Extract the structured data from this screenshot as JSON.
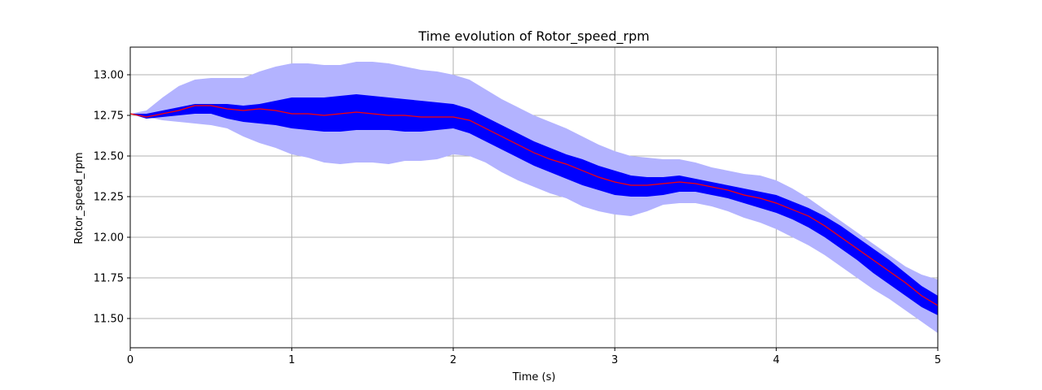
{
  "chart_data": {
    "type": "area",
    "title": "Time evolution of Rotor_speed_rpm",
    "xlabel": "Time (s)",
    "ylabel": "Rotor_speed_rpm",
    "xlim": [
      0,
      5
    ],
    "ylim": [
      11.32,
      13.17
    ],
    "xticks": [
      0,
      1,
      2,
      3,
      4,
      5
    ],
    "xtick_labels": [
      "0",
      "1",
      "2",
      "3",
      "4",
      "5"
    ],
    "yticks": [
      11.5,
      11.75,
      12.0,
      12.25,
      12.5,
      12.75,
      13.0
    ],
    "ytick_labels": [
      "11.50",
      "11.75",
      "12.00",
      "12.25",
      "12.50",
      "12.75",
      "13.00"
    ],
    "grid": true,
    "colors": {
      "outer_band": "#b3b3ff",
      "inner_band": "#0000ff",
      "mean_line": "#ff0000",
      "grid": "#b0b0b0",
      "axis": "#000000"
    },
    "x": [
      0,
      0.1,
      0.2,
      0.3,
      0.4,
      0.5,
      0.6,
      0.7,
      0.8,
      0.9,
      1.0,
      1.1,
      1.2,
      1.3,
      1.4,
      1.5,
      1.6,
      1.7,
      1.8,
      1.9,
      2.0,
      2.1,
      2.2,
      2.3,
      2.4,
      2.5,
      2.6,
      2.7,
      2.8,
      2.9,
      3.0,
      3.1,
      3.2,
      3.3,
      3.4,
      3.5,
      3.6,
      3.7,
      3.8,
      3.9,
      4.0,
      4.1,
      4.2,
      4.3,
      4.4,
      4.5,
      4.6,
      4.7,
      4.8,
      4.9,
      5.0
    ],
    "series": [
      {
        "role": "outer_upper",
        "values": [
          12.76,
          12.78,
          12.86,
          12.93,
          12.97,
          12.98,
          12.98,
          12.98,
          13.02,
          13.05,
          13.07,
          13.07,
          13.06,
          13.06,
          13.08,
          13.08,
          13.07,
          13.05,
          13.03,
          13.02,
          13.0,
          12.97,
          12.91,
          12.85,
          12.8,
          12.75,
          12.71,
          12.67,
          12.62,
          12.57,
          12.53,
          12.5,
          12.49,
          12.48,
          12.48,
          12.46,
          12.43,
          12.41,
          12.39,
          12.38,
          12.35,
          12.3,
          12.24,
          12.17,
          12.1,
          12.03,
          11.96,
          11.89,
          11.82,
          11.77,
          11.74
        ]
      },
      {
        "role": "inner_upper",
        "values": [
          12.76,
          12.76,
          12.78,
          12.8,
          12.82,
          12.82,
          12.82,
          12.81,
          12.82,
          12.84,
          12.86,
          12.86,
          12.86,
          12.87,
          12.88,
          12.87,
          12.86,
          12.85,
          12.84,
          12.83,
          12.82,
          12.79,
          12.74,
          12.69,
          12.64,
          12.59,
          12.55,
          12.51,
          12.48,
          12.44,
          12.41,
          12.38,
          12.37,
          12.37,
          12.38,
          12.36,
          12.34,
          12.32,
          12.3,
          12.28,
          12.26,
          12.22,
          12.18,
          12.13,
          12.07,
          12.0,
          11.93,
          11.86,
          11.78,
          11.7,
          11.64
        ]
      },
      {
        "name": "",
        "role": "mean",
        "values": [
          12.76,
          12.74,
          12.76,
          12.78,
          12.81,
          12.81,
          12.79,
          12.78,
          12.79,
          12.78,
          12.76,
          12.76,
          12.75,
          12.76,
          12.77,
          12.76,
          12.75,
          12.75,
          12.74,
          12.74,
          12.74,
          12.72,
          12.67,
          12.62,
          12.57,
          12.52,
          12.48,
          12.45,
          12.41,
          12.37,
          12.34,
          12.32,
          12.32,
          12.33,
          12.34,
          12.33,
          12.31,
          12.29,
          12.26,
          12.24,
          12.21,
          12.17,
          12.13,
          12.07,
          12.0,
          11.93,
          11.86,
          11.79,
          11.72,
          11.64,
          11.58
        ]
      },
      {
        "role": "inner_lower",
        "values": [
          12.76,
          12.73,
          12.74,
          12.75,
          12.76,
          12.76,
          12.73,
          12.71,
          12.7,
          12.69,
          12.67,
          12.66,
          12.65,
          12.65,
          12.66,
          12.66,
          12.66,
          12.65,
          12.65,
          12.66,
          12.67,
          12.64,
          12.59,
          12.54,
          12.49,
          12.44,
          12.4,
          12.36,
          12.32,
          12.29,
          12.26,
          12.25,
          12.25,
          12.26,
          12.28,
          12.28,
          12.26,
          12.24,
          12.21,
          12.18,
          12.15,
          12.11,
          12.06,
          12.0,
          11.93,
          11.86,
          11.78,
          11.71,
          11.64,
          11.57,
          11.52
        ]
      },
      {
        "role": "outer_lower",
        "values": [
          12.76,
          12.74,
          12.72,
          12.71,
          12.7,
          12.69,
          12.67,
          12.62,
          12.58,
          12.55,
          12.51,
          12.49,
          12.46,
          12.45,
          12.46,
          12.46,
          12.45,
          12.47,
          12.47,
          12.48,
          12.51,
          12.5,
          12.46,
          12.4,
          12.35,
          12.31,
          12.27,
          12.24,
          12.19,
          12.16,
          12.14,
          12.13,
          12.16,
          12.2,
          12.21,
          12.21,
          12.19,
          12.16,
          12.12,
          12.09,
          12.05,
          12.0,
          11.95,
          11.89,
          11.82,
          11.75,
          11.68,
          11.62,
          11.55,
          11.48,
          11.41
        ]
      }
    ]
  }
}
